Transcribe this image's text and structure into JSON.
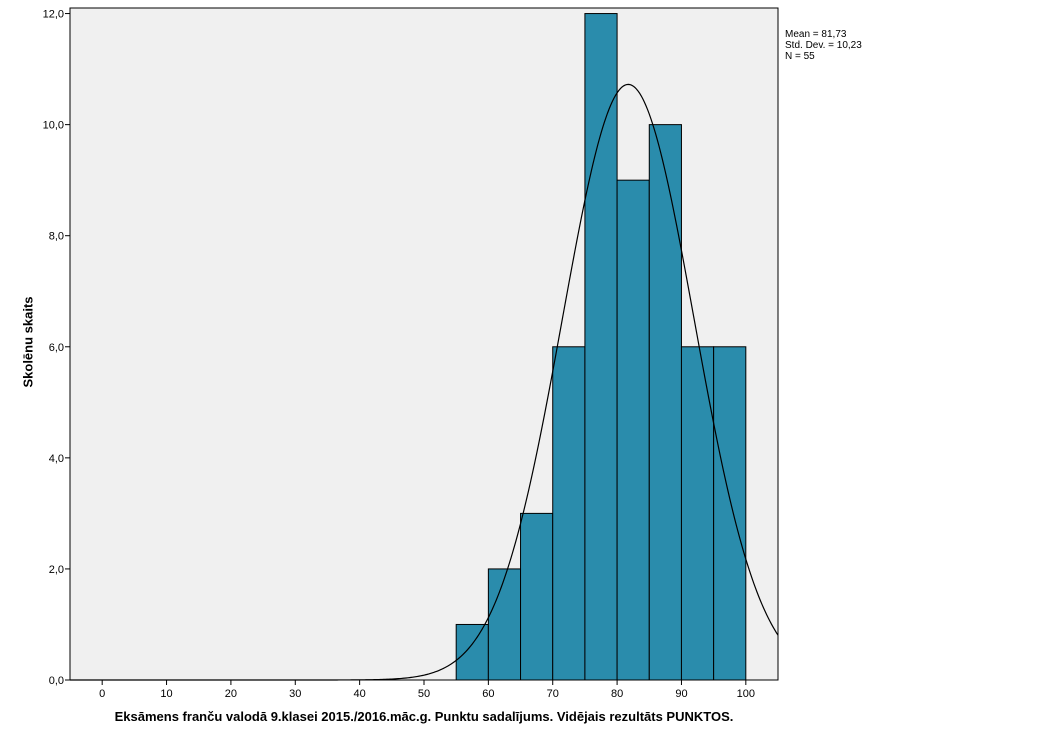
{
  "chart_data": {
    "type": "bar",
    "xlabel": "Eksāmens franču valodā 9.klasei 2015./2016.māc.g. Punktu sadalījums. Vidējais rezultāts PUNKTOS.",
    "ylabel": "Skolēnu skaits",
    "xlim": [
      -5,
      105
    ],
    "ylim": [
      0,
      12.1
    ],
    "x_ticks": [
      0,
      10,
      20,
      30,
      40,
      50,
      60,
      70,
      80,
      90,
      100
    ],
    "y_ticks": [
      0,
      2,
      4,
      6,
      8,
      10,
      12
    ],
    "y_tick_labels": [
      "0,0",
      "2,0",
      "4,0",
      "6,0",
      "8,0",
      "10,0",
      "12,0"
    ],
    "bins": [
      {
        "from": 55,
        "to": 60,
        "count": 1
      },
      {
        "from": 60,
        "to": 65,
        "count": 2
      },
      {
        "from": 65,
        "to": 70,
        "count": 3
      },
      {
        "from": 70,
        "to": 75,
        "count": 6
      },
      {
        "from": 75,
        "to": 80,
        "count": 12
      },
      {
        "from": 80,
        "to": 85,
        "count": 9
      },
      {
        "from": 85,
        "to": 90,
        "count": 10
      },
      {
        "from": 90,
        "to": 95,
        "count": 6
      },
      {
        "from": 95,
        "to": 100,
        "count": 6
      }
    ],
    "normal_curve": {
      "mean": 81.73,
      "std_dev": 10.23,
      "n": 55,
      "bin_width": 5
    },
    "stats_text": [
      "Mean = 81,73",
      "Std. Dev. = 10,23",
      "N = 55"
    ],
    "colors": {
      "bar_fill": "#2a8cac",
      "bar_stroke": "#000000",
      "plot_bg": "#f0f0f0",
      "curve": "#000000"
    },
    "grid": false
  }
}
